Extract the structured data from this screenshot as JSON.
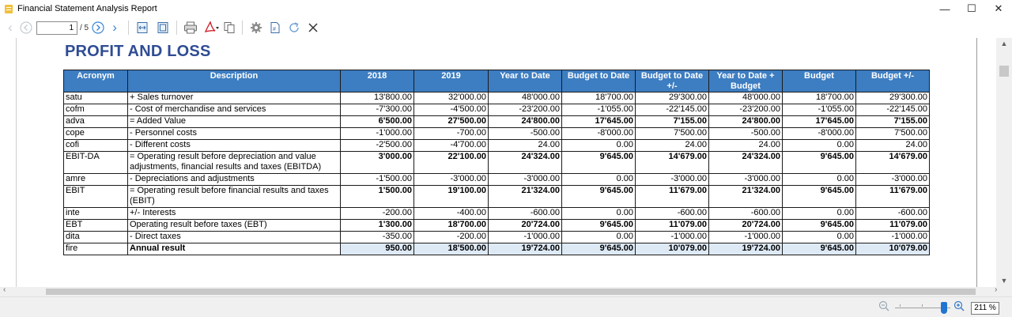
{
  "window": {
    "title": "Financial Statement Analysis Report"
  },
  "toolbar": {
    "page_value": "1",
    "page_total": "/ 5"
  },
  "zoom": {
    "value": "211 %"
  },
  "report": {
    "title": "PROFIT AND LOSS",
    "headers": [
      "Acronym",
      "Description",
      "2018",
      "2019",
      "Year to Date",
      "Budget to Date",
      "Budget to Date +/-",
      "Year to Date + Budget",
      "Budget",
      "Budget +/-"
    ],
    "rows": [
      {
        "acronym": "satu",
        "description": "+ Sales turnover",
        "values": [
          "13'800.00",
          "32'000.00",
          "48'000.00",
          "18'700.00",
          "29'300.00",
          "48'000.00",
          "18'700.00",
          "29'300.00"
        ]
      },
      {
        "acronym": "cofm",
        "description": "- Cost of merchandise and services",
        "values": [
          "-7'300.00",
          "-4'500.00",
          "-23'200.00",
          "-1'055.00",
          "-22'145.00",
          "-23'200.00",
          "-1'055.00",
          "-22'145.00"
        ]
      },
      {
        "acronym": "adva",
        "description": "= Added Value",
        "values": [
          "6'500.00",
          "27'500.00",
          "24'800.00",
          "17'645.00",
          "7'155.00",
          "24'800.00",
          "17'645.00",
          "7'155.00"
        ]
      },
      {
        "acronym": "cope",
        "description": "- Personnel costs",
        "values": [
          "-1'000.00",
          "-700.00",
          "-500.00",
          "-8'000.00",
          "7'500.00",
          "-500.00",
          "-8'000.00",
          "7'500.00"
        ]
      },
      {
        "acronym": "cofi",
        "description": "- Different costs",
        "values": [
          "-2'500.00",
          "-4'700.00",
          "24.00",
          "0.00",
          "24.00",
          "24.00",
          "0.00",
          "24.00"
        ]
      },
      {
        "acronym": "EBIT-DA",
        "description": "= Operating result before depreciation and value adjustments, financial results and taxes (EBITDA)",
        "values": [
          "3'000.00",
          "22'100.00",
          "24'324.00",
          "9'645.00",
          "14'679.00",
          "24'324.00",
          "9'645.00",
          "14'679.00"
        ]
      },
      {
        "acronym": "amre",
        "description": "- Depreciations and adjustments",
        "values": [
          "-1'500.00",
          "-3'000.00",
          "-3'000.00",
          "0.00",
          "-3'000.00",
          "-3'000.00",
          "0.00",
          "-3'000.00"
        ]
      },
      {
        "acronym": "EBIT",
        "description": "= Operating result before financial results and taxes (EBIT)",
        "values": [
          "1'500.00",
          "19'100.00",
          "21'324.00",
          "9'645.00",
          "11'679.00",
          "21'324.00",
          "9'645.00",
          "11'679.00"
        ]
      },
      {
        "acronym": "inte",
        "description": "+/- Interests",
        "values": [
          "-200.00",
          "-400.00",
          "-600.00",
          "0.00",
          "-600.00",
          "-600.00",
          "0.00",
          "-600.00"
        ]
      },
      {
        "acronym": "EBT",
        "description": "Operating result before taxes (EBT)",
        "values": [
          "1'300.00",
          "18'700.00",
          "20'724.00",
          "9'645.00",
          "11'079.00",
          "20'724.00",
          "9'645.00",
          "11'079.00"
        ]
      },
      {
        "acronym": "dita",
        "description": "- Direct taxes",
        "values": [
          "-350.00",
          "-200.00",
          "-1'000.00",
          "0.00",
          "-1'000.00",
          "-1'000.00",
          "0.00",
          "-1'000.00"
        ]
      },
      {
        "acronym": "fire",
        "description": "Annual result",
        "values": [
          "950.00",
          "18'500.00",
          "19'724.00",
          "9'645.00",
          "10'079.00",
          "19'724.00",
          "9'645.00",
          "10'079.00"
        ]
      }
    ]
  }
}
